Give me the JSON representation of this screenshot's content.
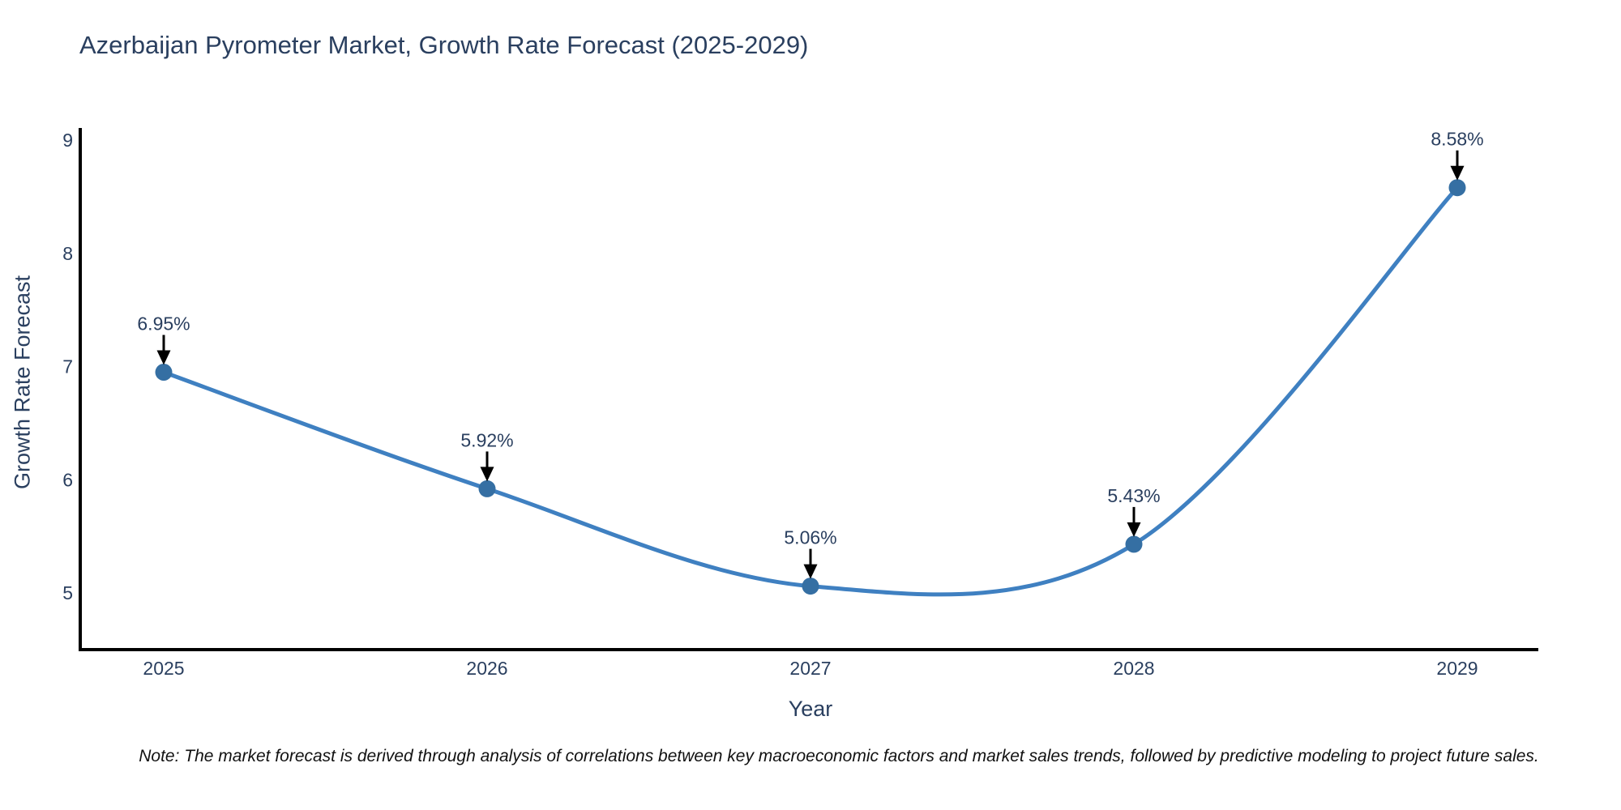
{
  "page": {
    "background_color": "#ffffff"
  },
  "chart_data": {
    "type": "line",
    "title": "Azerbaijan Pyrometer Market, Growth Rate Forecast (2025-2029)",
    "xlabel": "Year",
    "ylabel": "Growth Rate Forecast",
    "x": [
      2025,
      2026,
      2027,
      2028,
      2029
    ],
    "values": [
      6.95,
      5.92,
      5.06,
      5.43,
      8.58
    ],
    "point_labels": [
      "6.95%",
      "5.92%",
      "5.06%",
      "5.43%",
      "8.58%"
    ],
    "yticks": [
      5,
      6,
      7,
      8,
      9
    ],
    "ylim": [
      4.5,
      9.1
    ],
    "grid": false,
    "legend": "none",
    "line_color": "#3f80c1",
    "marker_color": "#356fa3",
    "axis_color": "#000000",
    "arrow_color": "#000000",
    "text_color": "#2a3f5f",
    "note": "Note: The market forecast is derived through analysis of correlations between key macroeconomic factors and market sales trends, followed by predictive modeling to project future sales."
  }
}
